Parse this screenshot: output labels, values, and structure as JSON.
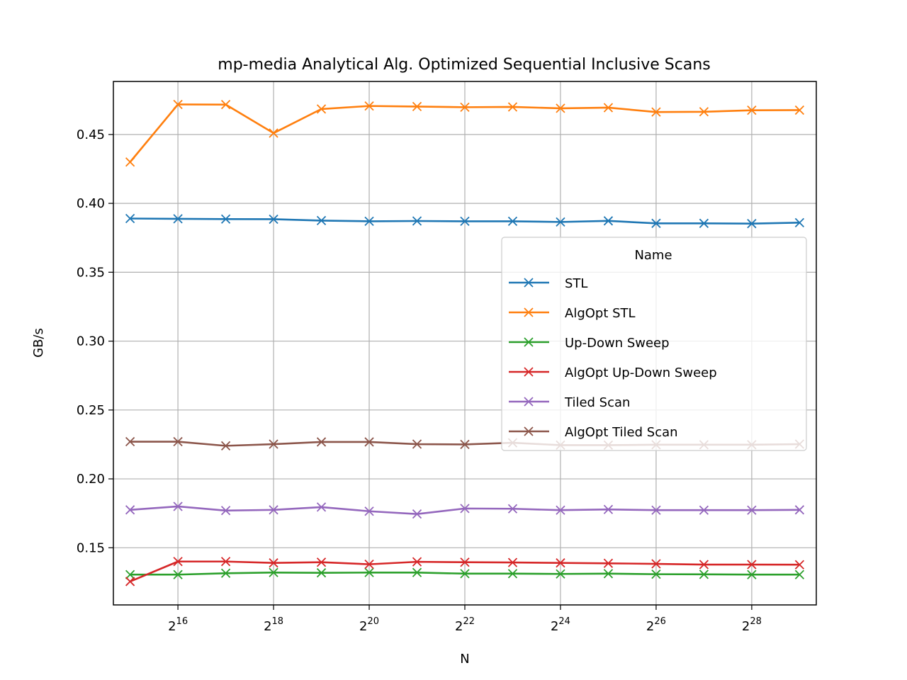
{
  "chart_data": {
    "type": "line",
    "title": "mp-media Analytical Alg. Optimized Sequential Inclusive Scans",
    "xlabel": "N",
    "ylabel": "GB/s",
    "x_scale": "log2",
    "x_exponents": [
      15,
      16,
      17,
      18,
      19,
      20,
      21,
      22,
      23,
      24,
      25,
      26,
      27,
      28,
      29
    ],
    "x_tick_exponents": [
      16,
      18,
      20,
      22,
      24,
      26,
      28
    ],
    "x_tick_base": "2",
    "x_tick_labels": [
      "16",
      "18",
      "20",
      "22",
      "24",
      "26",
      "28"
    ],
    "y_ticks": [
      0.15,
      0.2,
      0.25,
      0.3,
      0.35,
      0.4,
      0.45
    ],
    "y_tick_labels": [
      "0.15",
      "0.20",
      "0.25",
      "0.30",
      "0.35",
      "0.40",
      "0.45"
    ],
    "xlim": [
      14.65,
      29.35
    ],
    "ylim": [
      0.1085,
      0.4885
    ],
    "grid": true,
    "marker": "x",
    "legend": {
      "title": "Name",
      "position": "center-right"
    },
    "series": [
      {
        "name": "STL",
        "color": "#1f77b4",
        "values": [
          0.389,
          0.3888,
          0.3886,
          0.3885,
          0.3875,
          0.387,
          0.3872,
          0.387,
          0.387,
          0.3865,
          0.3873,
          0.3855,
          0.3855,
          0.3853,
          0.386
        ]
      },
      {
        "name": "AlgOpt STL",
        "color": "#ff7f0e",
        "values": [
          0.43,
          0.4718,
          0.4717,
          0.451,
          0.4685,
          0.4707,
          0.4703,
          0.4698,
          0.47,
          0.469,
          0.4695,
          0.4663,
          0.4665,
          0.4676,
          0.4677
        ]
      },
      {
        "name": "Up-Down Sweep",
        "color": "#2ca02c",
        "values": [
          0.1305,
          0.1305,
          0.1315,
          0.132,
          0.1318,
          0.132,
          0.132,
          0.1312,
          0.1312,
          0.131,
          0.1312,
          0.1308,
          0.1307,
          0.1305,
          0.1305
        ]
      },
      {
        "name": "AlgOpt Up-Down Sweep",
        "color": "#d62728",
        "values": [
          0.1255,
          0.14,
          0.14,
          0.139,
          0.1395,
          0.138,
          0.1398,
          0.1395,
          0.1393,
          0.139,
          0.1387,
          0.1383,
          0.1378,
          0.1378,
          0.1377
        ]
      },
      {
        "name": "Tiled Scan",
        "color": "#9467bd",
        "values": [
          0.1775,
          0.18,
          0.177,
          0.1775,
          0.1795,
          0.1765,
          0.1745,
          0.1785,
          0.1783,
          0.1773,
          0.1778,
          0.1773,
          0.1773,
          0.1773,
          0.1775
        ]
      },
      {
        "name": "AlgOpt Tiled Scan",
        "color": "#8c564b",
        "values": [
          0.227,
          0.227,
          0.224,
          0.2252,
          0.2268,
          0.2268,
          0.2252,
          0.225,
          0.2262,
          0.2245,
          0.2245,
          0.2248,
          0.2248,
          0.2248,
          0.2252
        ]
      }
    ]
  }
}
